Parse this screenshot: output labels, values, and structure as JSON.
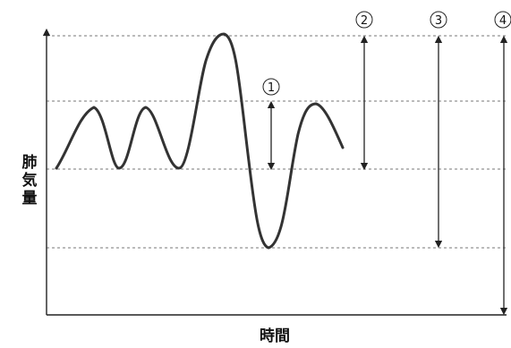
{
  "y_axis_label": [
    "肺",
    "気",
    "量"
  ],
  "x_axis_label": "時間",
  "markers": {
    "m1": "1",
    "m2": "2",
    "m3": "3",
    "m4": "4"
  },
  "colors": {
    "curve": "#333333",
    "guide_lines": "#777777",
    "axes": "#222222"
  }
}
